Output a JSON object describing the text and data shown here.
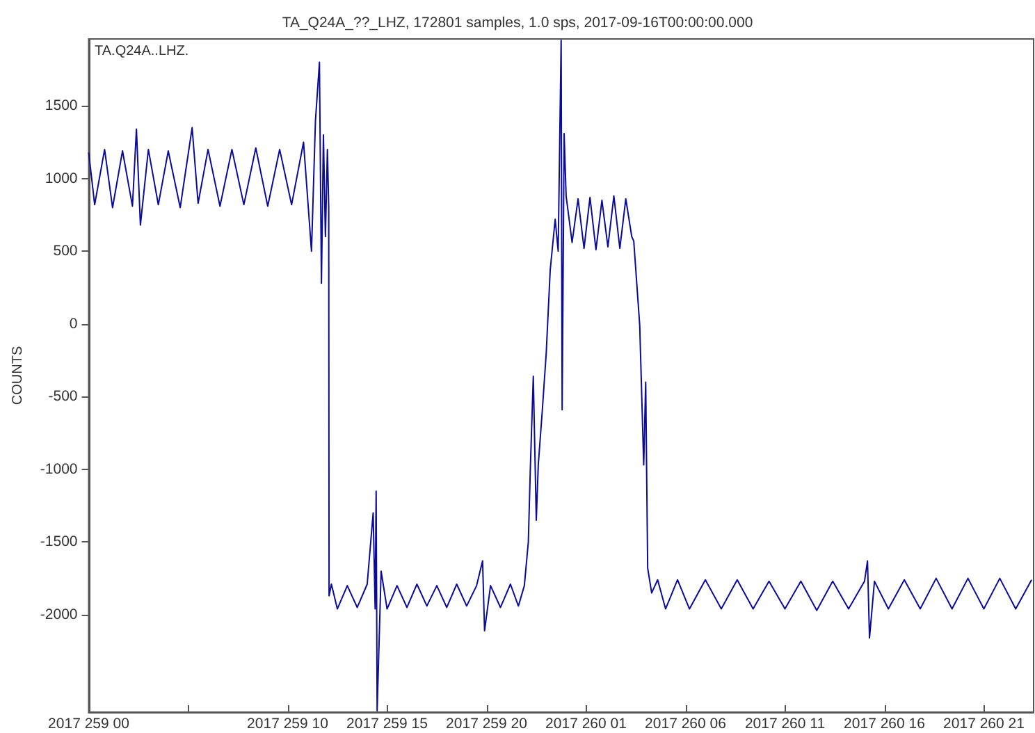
{
  "chart_data": {
    "type": "line",
    "title": "TA_Q24A_??_LHZ, 172801 samples, 1.0 sps, 2017-09-16T00:00:00.000",
    "ylabel": "COUNTS",
    "annotations": [
      "TA.Q24A..LHZ."
    ],
    "xlim": [
      "2017-09-16T00:00",
      "2017-09-17T23:30"
    ],
    "xticks": [
      {
        "value": "2017-09-16T00:00",
        "label": "2017 259 00"
      },
      {
        "value": "2017-09-16T05:00",
        "label": null
      },
      {
        "value": "2017-09-16T10:00",
        "label": "2017 259 10"
      },
      {
        "value": "2017-09-16T15:00",
        "label": "2017 259 15"
      },
      {
        "value": "2017-09-16T20:00",
        "label": "2017 259 20"
      },
      {
        "value": "2017-09-17T01:00",
        "label": "2017 260 01"
      },
      {
        "value": "2017-09-17T06:00",
        "label": "2017 260 06"
      },
      {
        "value": "2017-09-17T11:00",
        "label": "2017 260 11"
      },
      {
        "value": "2017-09-17T16:00",
        "label": "2017 260 16"
      },
      {
        "value": "2017-09-17T21:00",
        "label": "2017 260 21"
      }
    ],
    "ylim": [
      -2670,
      1960
    ],
    "yticks": [
      -2000,
      -1500,
      -1000,
      -500,
      0,
      500,
      1000,
      1500
    ],
    "series": [
      {
        "color": "#0b0b9a",
        "x": [
          "2017-09-16T00:00",
          "2017-09-16T00:18",
          "2017-09-16T00:48",
          "2017-09-16T01:12",
          "2017-09-16T01:42",
          "2017-09-16T02:12",
          "2017-09-16T02:24",
          "2017-09-16T02:36",
          "2017-09-16T03:00",
          "2017-09-16T03:30",
          "2017-09-16T04:00",
          "2017-09-16T04:36",
          "2017-09-16T05:12",
          "2017-09-16T05:30",
          "2017-09-16T06:00",
          "2017-09-16T06:36",
          "2017-09-16T07:12",
          "2017-09-16T07:48",
          "2017-09-16T08:24",
          "2017-09-16T09:00",
          "2017-09-16T09:36",
          "2017-09-16T10:12",
          "2017-09-16T10:48",
          "2017-09-16T11:12",
          "2017-09-16T11:24",
          "2017-09-16T11:36",
          "2017-09-16T11:42",
          "2017-09-16T11:48",
          "2017-09-16T11:54",
          "2017-09-16T12:00",
          "2017-09-16T12:04",
          "2017-09-16T12:05",
          "2017-09-16T12:12",
          "2017-09-16T12:30",
          "2017-09-16T13:00",
          "2017-09-16T13:30",
          "2017-09-16T14:00",
          "2017-09-16T14:18",
          "2017-09-16T14:24",
          "2017-09-16T14:27",
          "2017-09-16T14:30",
          "2017-09-16T14:42",
          "2017-09-16T15:00",
          "2017-09-16T15:30",
          "2017-09-16T16:00",
          "2017-09-16T16:30",
          "2017-09-16T17:00",
          "2017-09-16T17:30",
          "2017-09-16T18:00",
          "2017-09-16T18:30",
          "2017-09-16T19:00",
          "2017-09-16T19:30",
          "2017-09-16T19:48",
          "2017-09-16T19:54",
          "2017-09-16T20:12",
          "2017-09-16T20:42",
          "2017-09-16T21:12",
          "2017-09-16T21:36",
          "2017-09-16T21:54",
          "2017-09-16T22:06",
          "2017-09-16T22:12",
          "2017-09-16T22:21",
          "2017-09-16T22:30",
          "2017-09-16T22:36",
          "2017-09-16T22:48",
          "2017-09-16T23:00",
          "2017-09-16T23:12",
          "2017-09-16T23:27",
          "2017-09-16T23:36",
          "2017-09-16T23:45",
          "2017-09-16T23:48",
          "2017-09-16T23:54",
          "2017-09-17T00:00",
          "2017-09-17T00:18",
          "2017-09-17T00:36",
          "2017-09-17T00:54",
          "2017-09-17T01:12",
          "2017-09-17T01:30",
          "2017-09-17T01:48",
          "2017-09-17T02:06",
          "2017-09-17T02:24",
          "2017-09-17T02:42",
          "2017-09-17T03:00",
          "2017-09-17T03:18",
          "2017-09-17T03:24",
          "2017-09-17T03:42",
          "2017-09-17T03:54",
          "2017-09-17T04:00",
          "2017-09-17T04:06",
          "2017-09-17T04:18",
          "2017-09-17T04:36",
          "2017-09-17T05:00",
          "2017-09-17T05:36",
          "2017-09-17T06:12",
          "2017-09-17T07:00",
          "2017-09-17T07:48",
          "2017-09-17T08:36",
          "2017-09-17T09:24",
          "2017-09-17T10:12",
          "2017-09-17T11:00",
          "2017-09-17T11:48",
          "2017-09-17T12:36",
          "2017-09-17T13:24",
          "2017-09-17T14:12",
          "2017-09-17T15:00",
          "2017-09-17T15:09",
          "2017-09-17T15:15",
          "2017-09-17T15:30",
          "2017-09-17T16:12",
          "2017-09-17T17:00",
          "2017-09-17T17:48",
          "2017-09-17T18:36",
          "2017-09-17T19:24",
          "2017-09-17T20:12",
          "2017-09-17T21:00",
          "2017-09-17T21:48",
          "2017-09-17T22:36",
          "2017-09-17T23:24"
        ],
        "values": [
          1180,
          820,
          1200,
          800,
          1190,
          810,
          1340,
          680,
          1200,
          820,
          1190,
          800,
          1350,
          830,
          1200,
          810,
          1200,
          820,
          1210,
          810,
          1200,
          820,
          1250,
          500,
          1400,
          1800,
          280,
          1300,
          600,
          1200,
          800,
          -1870,
          -1790,
          -1960,
          -1800,
          -1950,
          -1790,
          -1300,
          -1960,
          -1150,
          -2660,
          -1700,
          -1960,
          -1800,
          -1950,
          -1790,
          -1940,
          -1800,
          -1950,
          -1790,
          -1940,
          -1800,
          -1630,
          -2110,
          -1800,
          -1950,
          -1790,
          -1940,
          -1800,
          -1500,
          -1000,
          -360,
          -1350,
          -970,
          -600,
          -200,
          370,
          720,
          500,
          1950,
          -590,
          1310,
          880,
          560,
          860,
          520,
          870,
          510,
          850,
          530,
          880,
          520,
          860,
          600,
          570,
          -10,
          -970,
          -400,
          -1680,
          -1850,
          -1760,
          -1960,
          -1760,
          -1960,
          -1760,
          -1960,
          -1760,
          -1960,
          -1770,
          -1960,
          -1770,
          -1970,
          -1770,
          -1960,
          -1770,
          -1630,
          -2160,
          -1770,
          -1960,
          -1760,
          -1960,
          -1750,
          -1960,
          -1750,
          -1960,
          -1750,
          -1960,
          -1760
        ]
      }
    ]
  }
}
